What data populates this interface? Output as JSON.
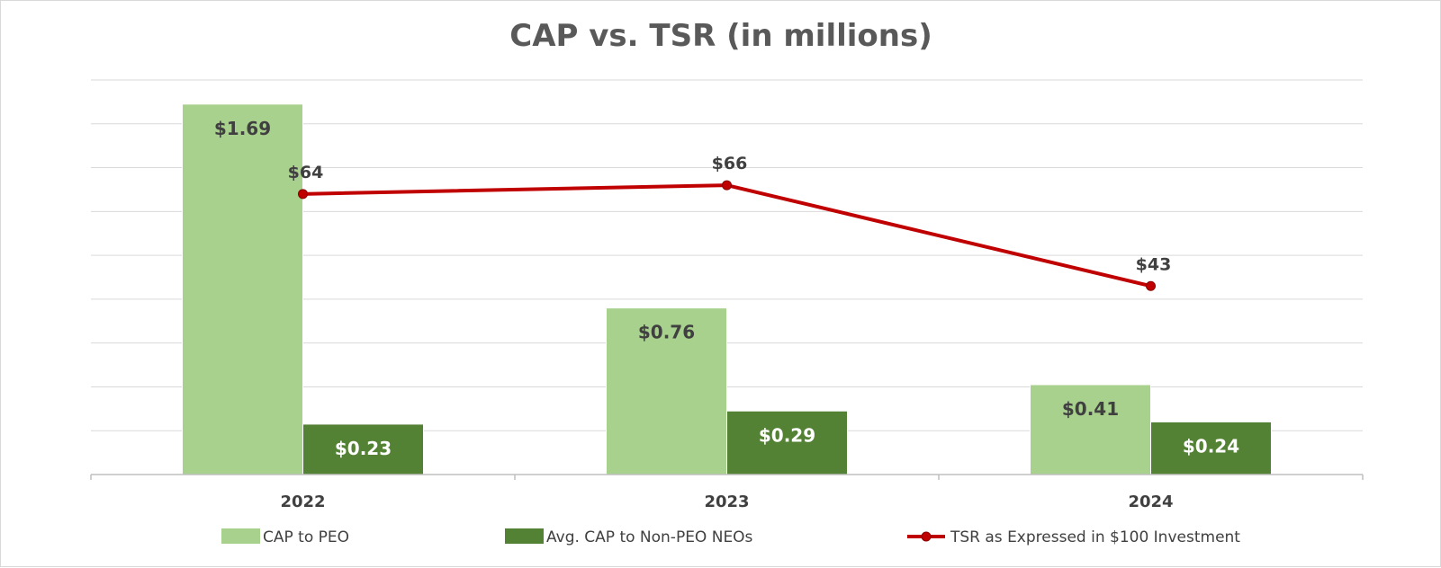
{
  "colors": {
    "cap_peo": "#a9d18e",
    "cap_neo": "#548235",
    "tsr": "#c00000",
    "grid": "#d9d9d9",
    "axis": "#bfbfbf",
    "label_dark": "#404040",
    "label_light": "#ffffff"
  },
  "chart_data": {
    "type": "bar",
    "title": "CAP vs. TSR (in millions)",
    "categories": [
      "2022",
      "2023",
      "2024"
    ],
    "series": [
      {
        "name": "CAP to PEO",
        "kind": "bar",
        "values": [
          1.69,
          0.76,
          0.41
        ],
        "labels": [
          "$1.69",
          "$0.76",
          "$0.41"
        ]
      },
      {
        "name": "Avg. CAP to Non-PEO NEOs",
        "kind": "bar",
        "values": [
          0.23,
          0.29,
          0.24
        ],
        "labels": [
          "$0.23",
          "$0.29",
          "$0.24"
        ]
      },
      {
        "name": "TSR as Expressed in $100 Investment",
        "kind": "line",
        "axis": "secondary",
        "values": [
          64,
          66,
          43
        ],
        "labels": [
          "$64",
          "$66",
          "$43"
        ]
      }
    ],
    "ylim": [
      0,
      1.8
    ],
    "y2lim": [
      0,
      90
    ],
    "grid": true,
    "legend": "bottom",
    "xlabel": "",
    "ylabel": ""
  }
}
